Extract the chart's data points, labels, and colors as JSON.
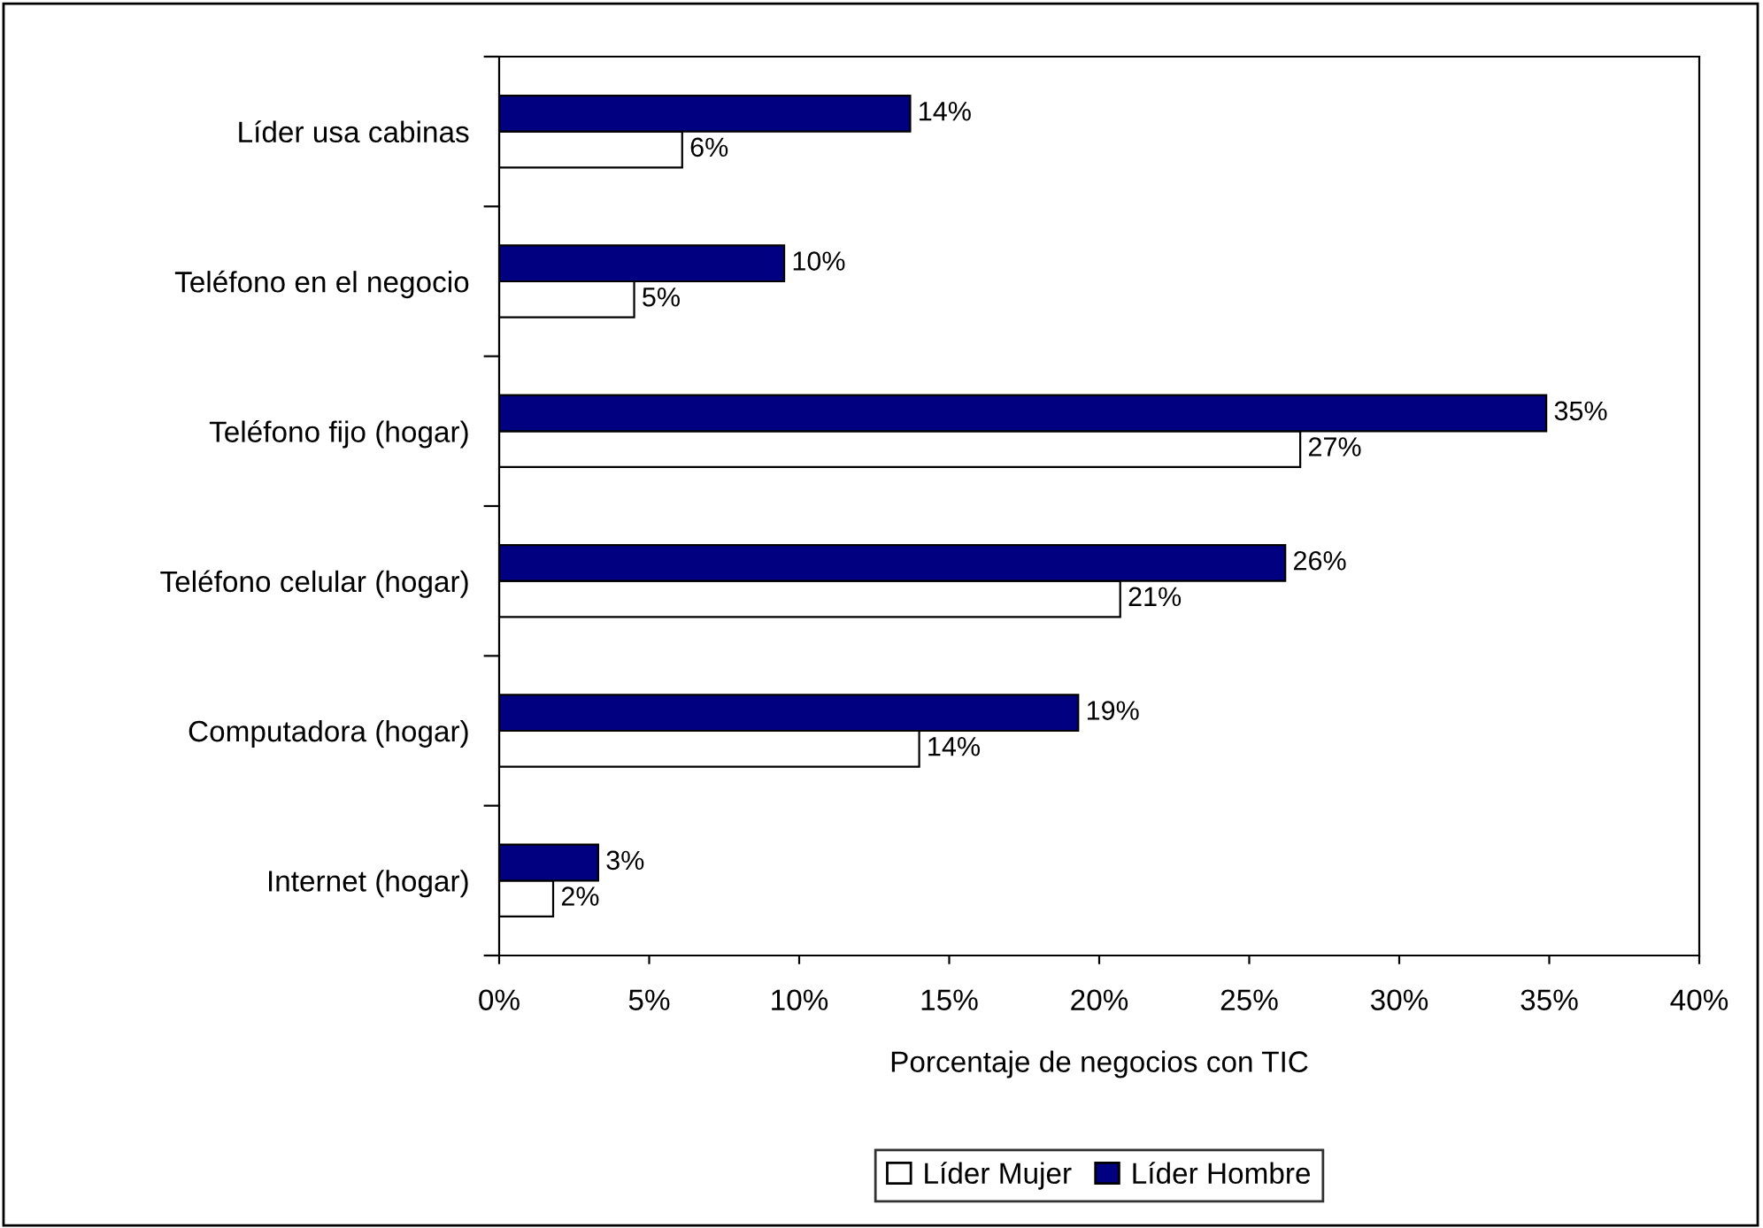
{
  "chart_data": {
    "type": "bar",
    "orientation": "horizontal",
    "xlabel": "Porcentaje de negocios con TIC",
    "categories": [
      "Líder usa cabinas",
      "Teléfono en el negocio",
      "Teléfono fijo (hogar)",
      "Teléfono celular (hogar)",
      "Computadora (hogar)",
      "Internet (hogar)"
    ],
    "series": [
      {
        "name": "Líder Mujer",
        "color": "#ffffff",
        "values": [
          6.1,
          4.5,
          26.7,
          20.7,
          14.0,
          1.8
        ],
        "value_labels": [
          "6%",
          "5%",
          "27%",
          "21%",
          "14%",
          "2%"
        ]
      },
      {
        "name": "Líder Hombre",
        "color": "#000080",
        "values": [
          13.7,
          9.5,
          34.9,
          26.2,
          19.3,
          3.3
        ],
        "value_labels": [
          "14%",
          "10%",
          "35%",
          "26%",
          "19%",
          "3%"
        ]
      }
    ],
    "xlim": [
      0,
      40
    ],
    "xticks": [
      {
        "value": 0,
        "label": "0%"
      },
      {
        "value": 5,
        "label": "5%"
      },
      {
        "value": 10,
        "label": "10%"
      },
      {
        "value": 15,
        "label": "15%"
      },
      {
        "value": 20,
        "label": "20%"
      },
      {
        "value": 25,
        "label": "25%"
      },
      {
        "value": 30,
        "label": "30%"
      },
      {
        "value": 35,
        "label": "35%"
      },
      {
        "value": 40,
        "label": "40%"
      }
    ],
    "grid": false,
    "legend": "bottom"
  }
}
